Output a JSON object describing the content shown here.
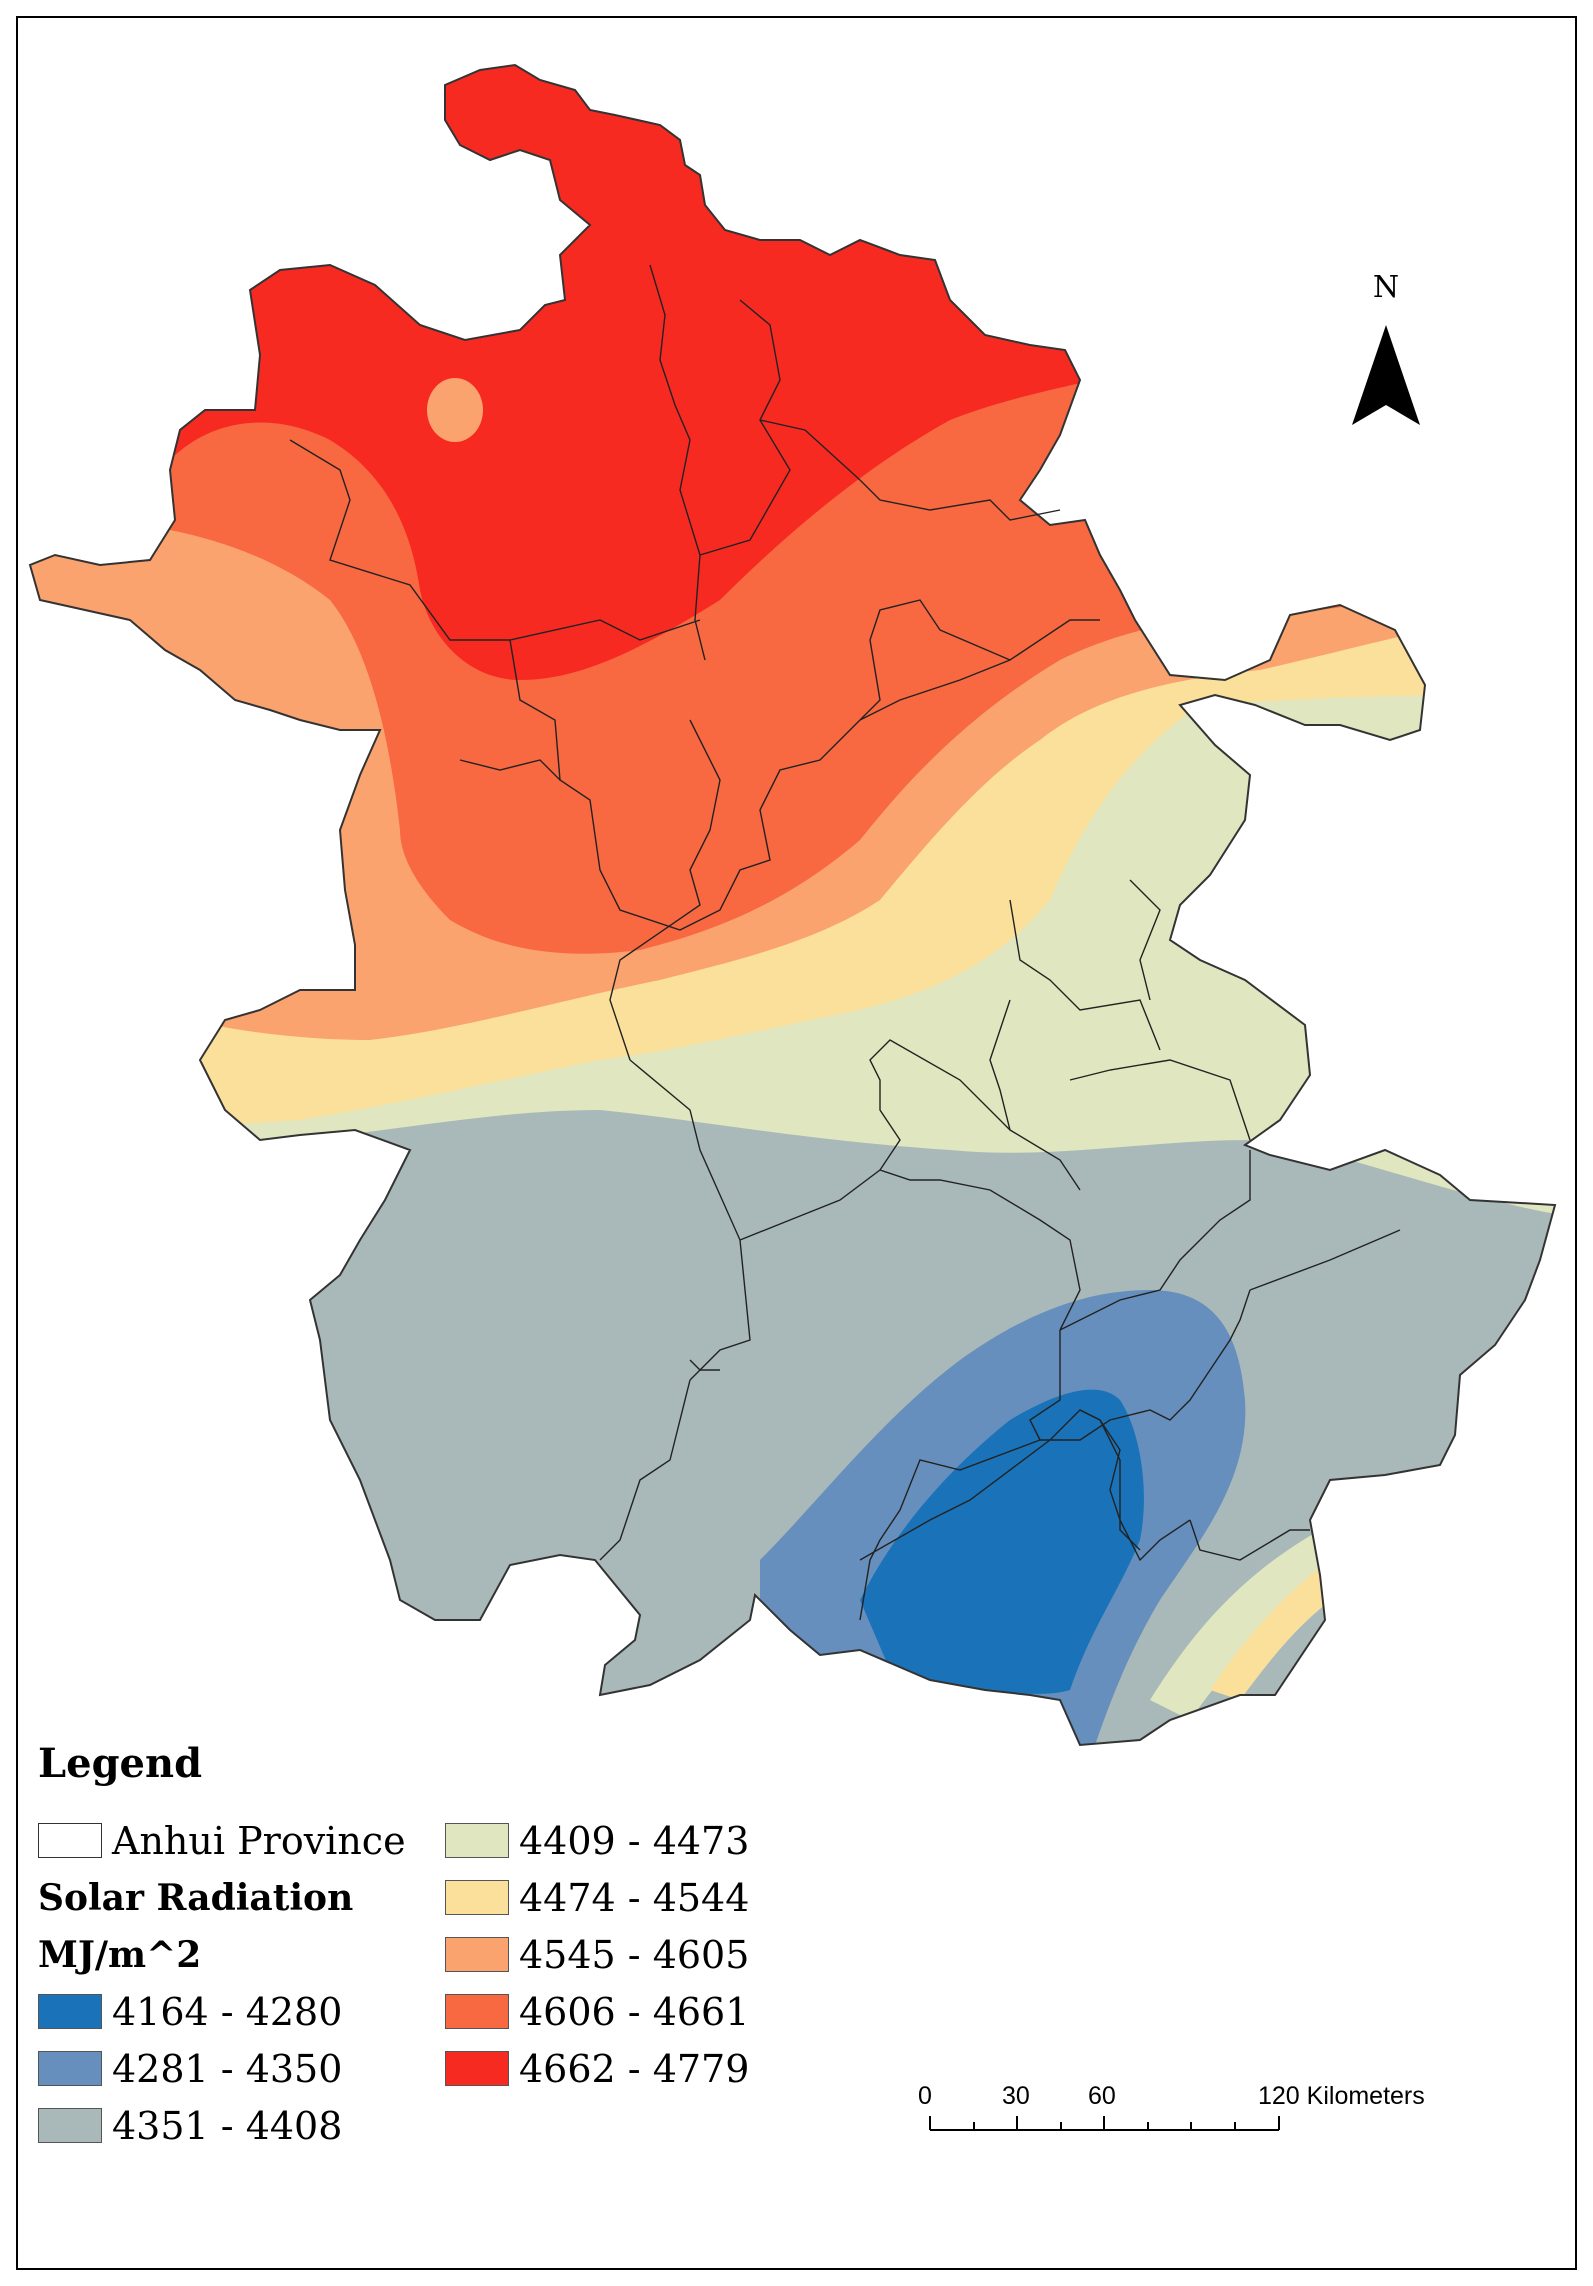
{
  "legend": {
    "title": "Legend",
    "boundary_label": "Anhui Province",
    "layer_title_line1": "Solar Radiation",
    "layer_title_line2": "MJ/m^2",
    "classes": [
      {
        "range": "4164 - 4280",
        "color": "#1a73b8"
      },
      {
        "range": "4281 - 4350",
        "color": "#668fbd"
      },
      {
        "range": "4351 - 4408",
        "color": "#a9b9b9"
      },
      {
        "range": "4409 - 4473",
        "color": "#e0e6bf"
      },
      {
        "range": "4474 - 4544",
        "color": "#fbe09c"
      },
      {
        "range": "4545 - 4605",
        "color": "#fba36f"
      },
      {
        "range": "4606 - 4661",
        "color": "#f86841"
      },
      {
        "range": "4662 - 4779",
        "color": "#f72a22"
      }
    ]
  },
  "north_arrow": {
    "label": "N",
    "icon": "north-arrow-icon"
  },
  "scale_bar": {
    "ticks": [
      "0",
      "30",
      "60",
      "120 Kilometers"
    ],
    "unit": "Kilometers"
  }
}
